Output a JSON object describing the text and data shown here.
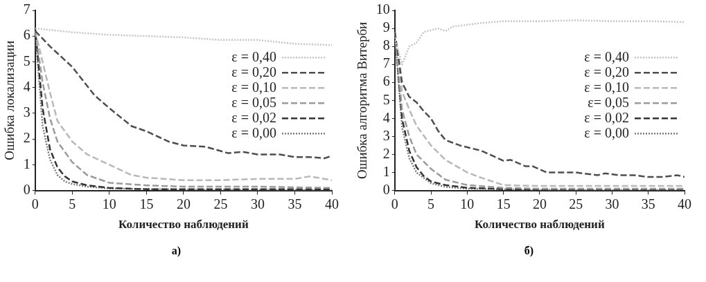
{
  "chart_data": [
    {
      "type": "line",
      "xlabel": "Количество наблюдений",
      "ylabel": "Ошибка локализации",
      "annotations": [
        "а)"
      ],
      "xlim": [
        0,
        40
      ],
      "xticks": [
        0,
        5,
        10,
        15,
        20,
        25,
        30,
        35,
        40
      ],
      "ylim": [
        0,
        7
      ],
      "yticks": [
        0,
        1,
        2,
        3,
        4,
        5,
        6,
        7
      ],
      "grid": false,
      "legend": "right",
      "marker": "none",
      "series": [
        {
          "name": "ε = 0,40",
          "color": "#c4c4c4",
          "line_style": "dotted",
          "x": [
            0,
            5,
            10,
            15,
            20,
            25,
            30,
            35,
            40
          ],
          "values": [
            6.3,
            6.15,
            6.05,
            6.0,
            5.95,
            5.85,
            5.85,
            5.7,
            5.65
          ]
        },
        {
          "name": "ε = 0,20",
          "color": "#4d4d4d",
          "line_style": "dashed",
          "x": [
            0,
            2,
            5,
            8,
            10,
            13,
            15,
            18,
            20,
            23,
            26,
            28,
            30,
            33,
            35,
            37,
            39,
            40
          ],
          "values": [
            6.2,
            5.6,
            4.8,
            3.7,
            3.2,
            2.5,
            2.3,
            1.9,
            1.75,
            1.7,
            1.45,
            1.5,
            1.4,
            1.4,
            1.3,
            1.3,
            1.25,
            1.35
          ]
        },
        {
          "name": "ε = 0,10",
          "color": "#b8b8b8",
          "line_style": "dashed",
          "x": [
            0,
            1,
            2,
            3,
            5,
            7,
            10,
            13,
            15,
            20,
            25,
            30,
            35,
            37,
            40
          ],
          "values": [
            6.2,
            5.0,
            3.8,
            2.7,
            1.9,
            1.4,
            1.0,
            0.6,
            0.5,
            0.4,
            0.4,
            0.45,
            0.45,
            0.55,
            0.4
          ]
        },
        {
          "name": "ε = 0,05",
          "color": "#9a9a9a",
          "line_style": "dashed",
          "x": [
            0,
            1,
            2,
            3,
            5,
            7,
            10,
            15,
            20,
            30,
            40
          ],
          "values": [
            6.2,
            4.2,
            2.8,
            1.9,
            1.1,
            0.6,
            0.3,
            0.2,
            0.15,
            0.15,
            0.1
          ]
        },
        {
          "name": "ε = 0,02",
          "color": "#333333",
          "line_style": "dashed",
          "x": [
            0,
            1,
            2,
            3,
            4,
            5,
            7,
            10,
            15,
            20,
            40
          ],
          "values": [
            6.3,
            3.2,
            1.6,
            0.9,
            0.55,
            0.35,
            0.2,
            0.1,
            0.05,
            0.05,
            0.05
          ]
        },
        {
          "name": "ε = 0,00",
          "color": "#7a7a7a",
          "line_style": "dotted",
          "x": [
            0,
            1,
            2,
            3,
            4,
            5,
            7,
            10,
            20,
            40
          ],
          "values": [
            6.2,
            2.5,
            1.2,
            0.6,
            0.35,
            0.25,
            0.15,
            0.08,
            0.03,
            0.02
          ]
        }
      ]
    },
    {
      "type": "line",
      "xlabel": "Количество наблюдений",
      "ylabel": "Ошибка алгоритма Витерби",
      "annotations": [
        "б)"
      ],
      "xlim": [
        0,
        40
      ],
      "xticks": [
        0,
        5,
        10,
        15,
        20,
        25,
        30,
        35,
        40
      ],
      "ylim": [
        0,
        10
      ],
      "yticks": [
        0,
        1,
        2,
        3,
        4,
        5,
        6,
        7,
        8,
        9,
        10
      ],
      "grid": false,
      "legend": "right",
      "marker": "none",
      "series": [
        {
          "name": "ε = 0,40",
          "color": "#c4c4c4",
          "line_style": "dotted",
          "x": [
            0,
            1,
            2,
            3,
            4,
            5,
            6,
            7,
            8,
            10,
            12,
            15,
            20,
            25,
            30,
            35,
            40
          ],
          "values": [
            8.5,
            7.0,
            8.0,
            8.2,
            8.8,
            8.9,
            9.0,
            8.85,
            9.1,
            9.2,
            9.3,
            9.4,
            9.4,
            9.45,
            9.4,
            9.4,
            9.35
          ]
        },
        {
          "name": "ε = 0,20",
          "color": "#4d4d4d",
          "line_style": "dashed",
          "x": [
            0,
            1,
            2,
            3,
            4,
            5,
            6,
            7,
            9,
            10,
            12,
            15,
            16,
            18,
            19,
            21,
            23,
            25,
            28,
            29,
            31,
            33,
            35,
            37,
            39,
            40
          ],
          "values": [
            8.8,
            6.0,
            5.2,
            4.9,
            4.4,
            4.0,
            3.3,
            2.8,
            2.5,
            2.4,
            2.2,
            1.65,
            1.7,
            1.35,
            1.35,
            1.0,
            1.0,
            1.0,
            0.85,
            0.95,
            0.85,
            0.85,
            0.75,
            0.75,
            0.85,
            0.75
          ]
        },
        {
          "name": "ε = 0,10",
          "color": "#b8b8b8",
          "line_style": "dashed",
          "x": [
            0,
            1,
            2,
            3,
            5,
            7,
            10,
            12,
            15,
            20,
            30,
            40
          ],
          "values": [
            8.8,
            5.5,
            4.5,
            3.6,
            2.5,
            1.7,
            1.0,
            0.7,
            0.3,
            0.25,
            0.25,
            0.25
          ]
        },
        {
          "name": "ε= 0,05",
          "color": "#9a9a9a",
          "line_style": "dashed",
          "x": [
            0,
            1,
            2,
            3,
            5,
            7,
            10,
            15,
            20,
            30,
            40
          ],
          "values": [
            8.8,
            4.5,
            3.0,
            2.0,
            1.2,
            0.6,
            0.3,
            0.15,
            0.1,
            0.1,
            0.1
          ]
        },
        {
          "name": "ε = 0,02",
          "color": "#333333",
          "line_style": "dashed",
          "x": [
            0,
            1,
            2,
            3,
            4,
            5,
            7,
            10,
            15,
            20,
            40
          ],
          "values": [
            8.8,
            4.0,
            2.2,
            1.3,
            0.8,
            0.5,
            0.3,
            0.15,
            0.08,
            0.05,
            0.05
          ]
        },
        {
          "name": "ε = 0,00",
          "color": "#7a7a7a",
          "line_style": "dotted",
          "x": [
            0,
            1,
            2,
            3,
            5,
            7,
            10,
            20,
            40
          ],
          "values": [
            8.8,
            3.5,
            1.8,
            1.0,
            0.4,
            0.2,
            0.1,
            0.03,
            0.02
          ]
        }
      ]
    }
  ]
}
